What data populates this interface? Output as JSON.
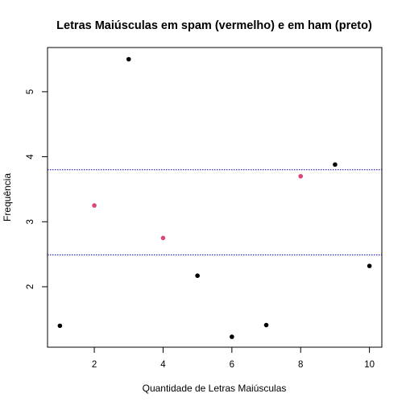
{
  "chart_data": {
    "type": "scatter",
    "title": "Letras Maiúsculas em spam (vermelho) e em ham (preto)",
    "xlabel": "Quantidade de Letras Maiúsculas",
    "ylabel": "Frequência",
    "xlim": [
      0.64,
      10.36
    ],
    "ylim": [
      1.07,
      5.68
    ],
    "x_ticks": [
      2,
      4,
      6,
      8,
      10
    ],
    "y_ticks": [
      2,
      3,
      4,
      5
    ],
    "grid": false,
    "points": [
      {
        "x": 1,
        "y": 1.4,
        "class": "ham"
      },
      {
        "x": 2,
        "y": 3.25,
        "class": "spam"
      },
      {
        "x": 3,
        "y": 5.5,
        "class": "ham"
      },
      {
        "x": 4,
        "y": 2.75,
        "class": "spam"
      },
      {
        "x": 5,
        "y": 2.17,
        "class": "ham"
      },
      {
        "x": 6,
        "y": 1.23,
        "class": "ham"
      },
      {
        "x": 7,
        "y": 1.41,
        "class": "ham"
      },
      {
        "x": 8,
        "y": 3.7,
        "class": "spam"
      },
      {
        "x": 9,
        "y": 3.88,
        "class": "ham"
      },
      {
        "x": 10,
        "y": 2.32,
        "class": "ham"
      }
    ],
    "hlines": [
      {
        "y": 3.8,
        "style": "dotted",
        "color": "#0000aa"
      },
      {
        "y": 2.49,
        "style": "dotted",
        "color": "#0000aa"
      }
    ],
    "colors": {
      "spam": "#d9467a",
      "ham": "#000000"
    }
  }
}
